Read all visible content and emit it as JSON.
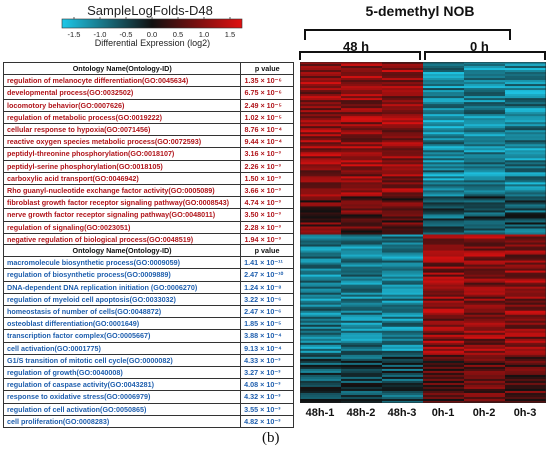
{
  "colorbar": {
    "title": "SampleLogFolds-D48",
    "ticks": [
      "-1.5",
      "-1.0",
      "-0.5",
      "0.0",
      "0.5",
      "1.0",
      "1.5"
    ],
    "caption": "Differential Expression (log2)",
    "colors": {
      "low": "#1ec8e8",
      "mid": "#111111",
      "high": "#e01010"
    }
  },
  "heatmap": {
    "title": "5-demethyl NOB",
    "groups": [
      {
        "label": "48 h"
      },
      {
        "label": "0 h"
      }
    ],
    "columns": [
      "48h-1",
      "48h-2",
      "48h-3",
      "0h-1",
      "0h-2",
      "0h-3"
    ]
  },
  "table_up": {
    "headers": [
      "Ontology Name(Ontology-ID)",
      "p value"
    ],
    "rows": [
      {
        "term": "regulation of melanocyte differentiation(GO:0045634)",
        "p": "1.35 × 10⁻⁶"
      },
      {
        "term": "developmental process(GO:0032502)",
        "p": "6.75 × 10⁻⁶"
      },
      {
        "term": "locomotory behavior(GO:0007626)",
        "p": "2.49 × 10⁻⁵"
      },
      {
        "term": "regulation of metabolic process(GO:0019222)",
        "p": "1.02 × 10⁻⁵"
      },
      {
        "term": "cellular response to hypoxia(GO:0071456)",
        "p": "8.76 × 10⁻⁴"
      },
      {
        "term": "reactive oxygen species metabolic process(GO:0072593)",
        "p": "9.44 × 10⁻⁴"
      },
      {
        "term": "peptidyl-threonine phosphorylation(GO:0018107)",
        "p": "3.16 × 10⁻³"
      },
      {
        "term": "peptidyl-serine phosphorylation(GO:0018105)",
        "p": "2.26 × 10⁻³"
      },
      {
        "term": "carboxylic acid transport(GO:0046942)",
        "p": "1.50 × 10⁻³"
      },
      {
        "term": "Rho guanyl-nucleotide exchange factor activity(GO:0005089)",
        "p": "3.66 × 10⁻³"
      },
      {
        "term": "fibroblast growth factor receptor signaling pathway(GO:0008543)",
        "p": "4.74 × 10⁻³"
      },
      {
        "term": "nerve growth factor receptor signaling pathway(GO:0048011)",
        "p": "3.50 × 10⁻³"
      },
      {
        "term": "regulation of signaling(GO:0023051)",
        "p": "2.28 × 10⁻³"
      },
      {
        "term": "negative regulation of biological process(GO:0048519)",
        "p": "1.94 × 10⁻³"
      }
    ]
  },
  "table_down": {
    "headers": [
      "Ontology Name(Ontology-ID)",
      "p value"
    ],
    "rows": [
      {
        "term": "macromolecule biosynthetic process(GO:0009059)",
        "p": "1.41 × 10⁻¹¹"
      },
      {
        "term": "regulation of biosynthetic process(GO:0009889)",
        "p": "2.47 × 10⁻¹⁰"
      },
      {
        "term": "DNA-dependent DNA replication initiation (GO:0006270)",
        "p": "1.24 × 10⁻⁸"
      },
      {
        "term": "regulation of myeloid cell apoptosis(GO:0033032)",
        "p": "3.22 × 10⁻⁶"
      },
      {
        "term": "homeostasis of number of cells(GO:0048872)",
        "p": "2.47 × 10⁻⁶"
      },
      {
        "term": "osteoblast differentiation(GO:0001649)",
        "p": "1.85 × 10⁻⁵"
      },
      {
        "term": "transcription factor complex(GO:0005667)",
        "p": "3.88 × 10⁻⁴"
      },
      {
        "term": "cell activation(GO:0001775)",
        "p": "9.13 × 10⁻⁴"
      },
      {
        "term": "G1/S transition of mitotic cell cycle(GO:0000082)",
        "p": "4.33 × 10⁻³"
      },
      {
        "term": "regulation of growth(GO:0040008)",
        "p": "3.27 × 10⁻³"
      },
      {
        "term": "regulation of caspase activity(GO:0043281)",
        "p": "4.08 × 10⁻³"
      },
      {
        "term": "response to oxidative stress(GO:0006979)",
        "p": "4.32 × 10⁻³"
      },
      {
        "term": "regulation of cell activation(GO:0050865)",
        "p": "3.55 × 10⁻³"
      },
      {
        "term": "cell proliferation(GO:0008283)",
        "p": "4.82 × 10⁻³"
      }
    ]
  },
  "panel_label": "(b)"
}
